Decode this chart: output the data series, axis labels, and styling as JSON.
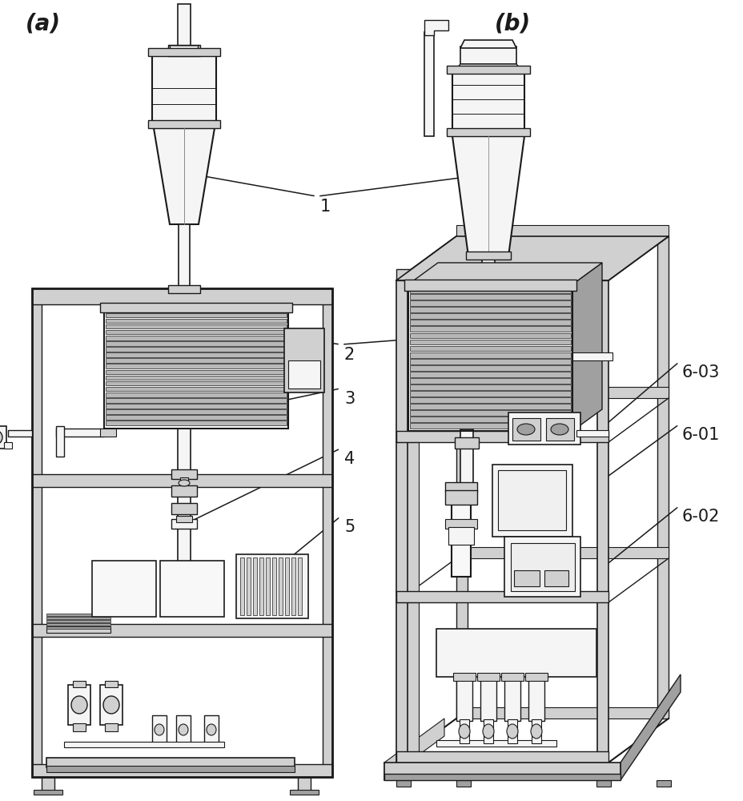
{
  "panel_a_label": "(a)",
  "panel_b_label": "(b)",
  "label_1": "1",
  "label_2": "2",
  "label_3": "3",
  "label_4": "4",
  "label_5": "5",
  "label_6_01": "6-01",
  "label_6_02": "6-02",
  "label_6_03": "6-03",
  "bg_color": "#ffffff",
  "lc": "#1a1a1a",
  "fl": "#f5f5f5",
  "fm": "#d0d0d0",
  "fd": "#a0a0a0",
  "coil_fill": "#e8e8e8",
  "coil_stripe": "#b8b8b8",
  "font_size_label": 20,
  "font_size_number": 15,
  "figsize": [
    9.29,
    10.0
  ],
  "dpi": 100
}
